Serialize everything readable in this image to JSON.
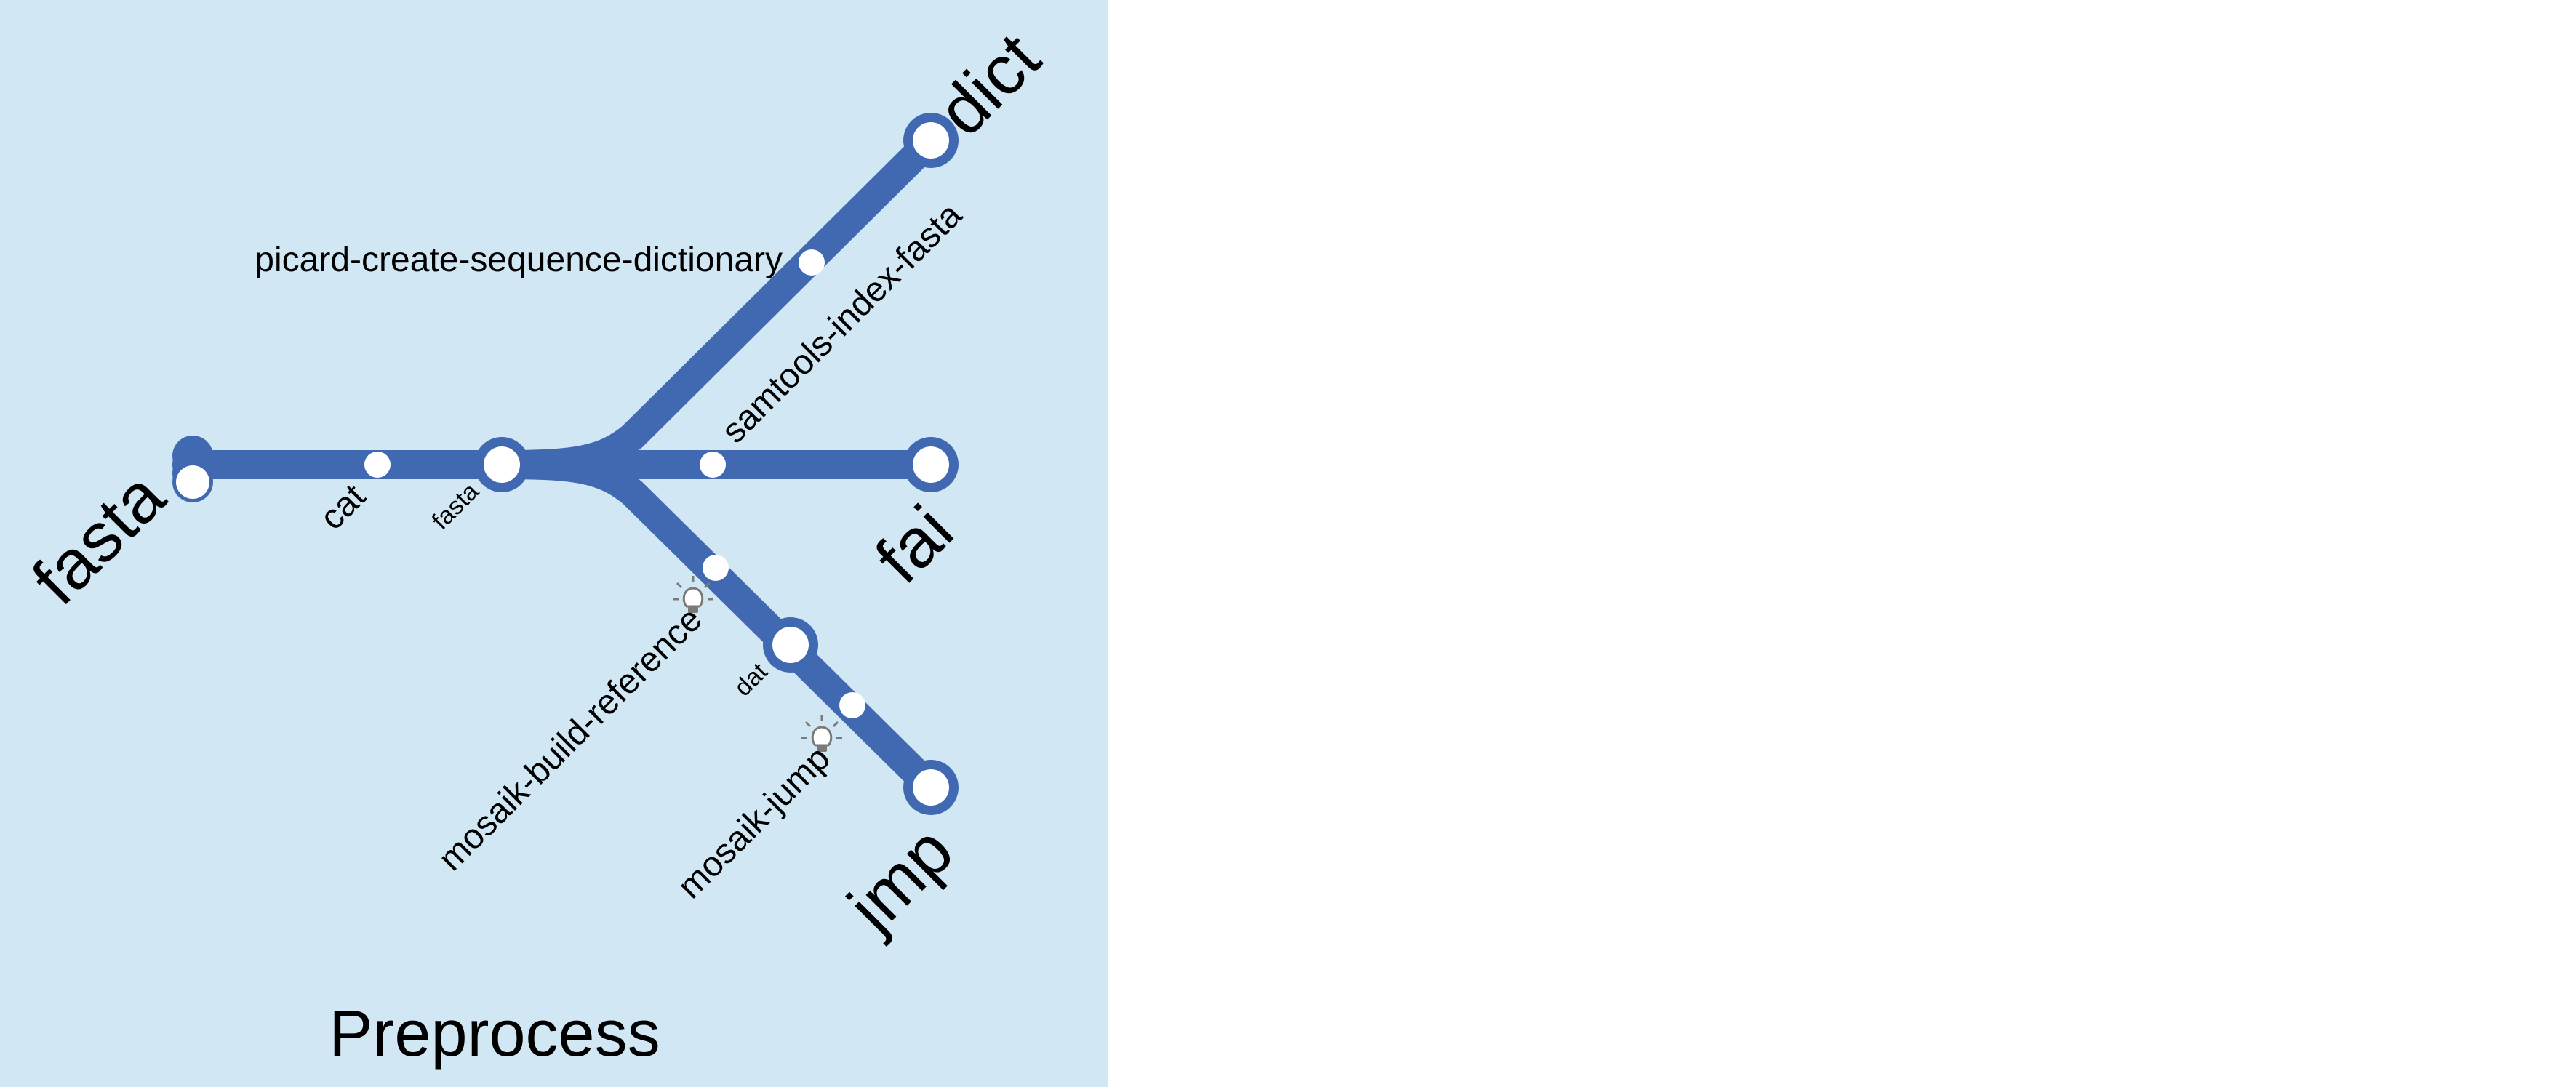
{
  "panel": {
    "title": "Preprocess",
    "background": "#d1e7f4"
  },
  "colors": {
    "track": "#4169b2",
    "node_fill": "#ffffff",
    "text": "#000000",
    "icon": "#7a7a7a"
  },
  "files": {
    "input": "fasta",
    "intermediate_fasta": "fasta",
    "dat": "dat",
    "dict": "dict",
    "fai": "fai",
    "jmp": "jmp"
  },
  "steps": {
    "cat": "cat",
    "picard": "picard-create-sequence-dictionary",
    "samtools": "samtools-index-fasta",
    "mosaik_build": "mosaik-build-reference",
    "mosaik_jump": "mosaik-jump"
  },
  "icons": {
    "mosaik_build_flag": "lightbulb-icon",
    "mosaik_jump_flag": "lightbulb-icon"
  }
}
